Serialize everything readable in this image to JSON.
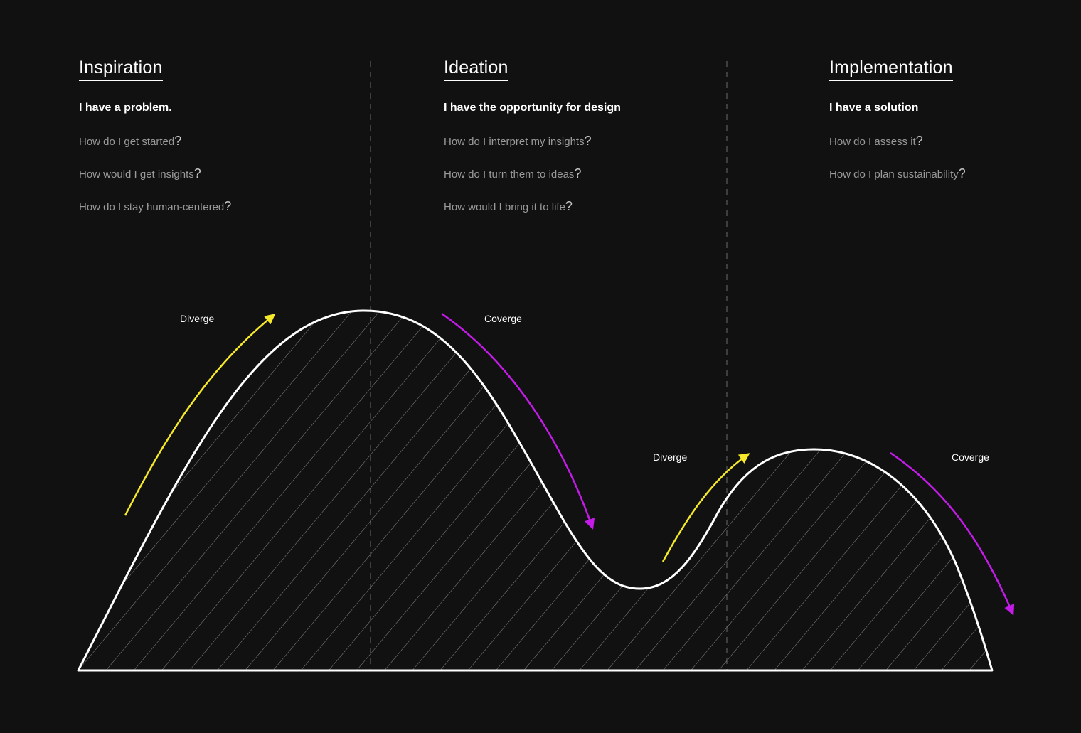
{
  "columns": [
    {
      "title": "Inspiration",
      "statement": "I have a problem.",
      "questions": [
        "How do I get started",
        "How would I get insights",
        "How do I stay human-centered"
      ]
    },
    {
      "title": "Ideation",
      "statement": "I have the opportunity for design",
      "questions": [
        "How do I interpret my insights",
        "How do I turn them to ideas",
        "How would I bring it to life"
      ]
    },
    {
      "title": "Implementation",
      "statement": "I have a solution",
      "questions": [
        "How do I assess it",
        "How do I plan sustainability"
      ]
    }
  ],
  "question_mark": "?",
  "arrows": [
    {
      "label": "Diverge",
      "color": "#f5e92a"
    },
    {
      "label": "Coverge",
      "color": "#c41be8"
    },
    {
      "label": "Diverge",
      "color": "#f5e92a"
    },
    {
      "label": "Coverge",
      "color": "#c41be8"
    }
  ],
  "colors": {
    "background": "#111111",
    "curve": "#ffffff",
    "hatch": "#8a8a8a",
    "divider": "#6a6a6a",
    "diverge": "#f5e92a",
    "converge": "#c41be8"
  }
}
